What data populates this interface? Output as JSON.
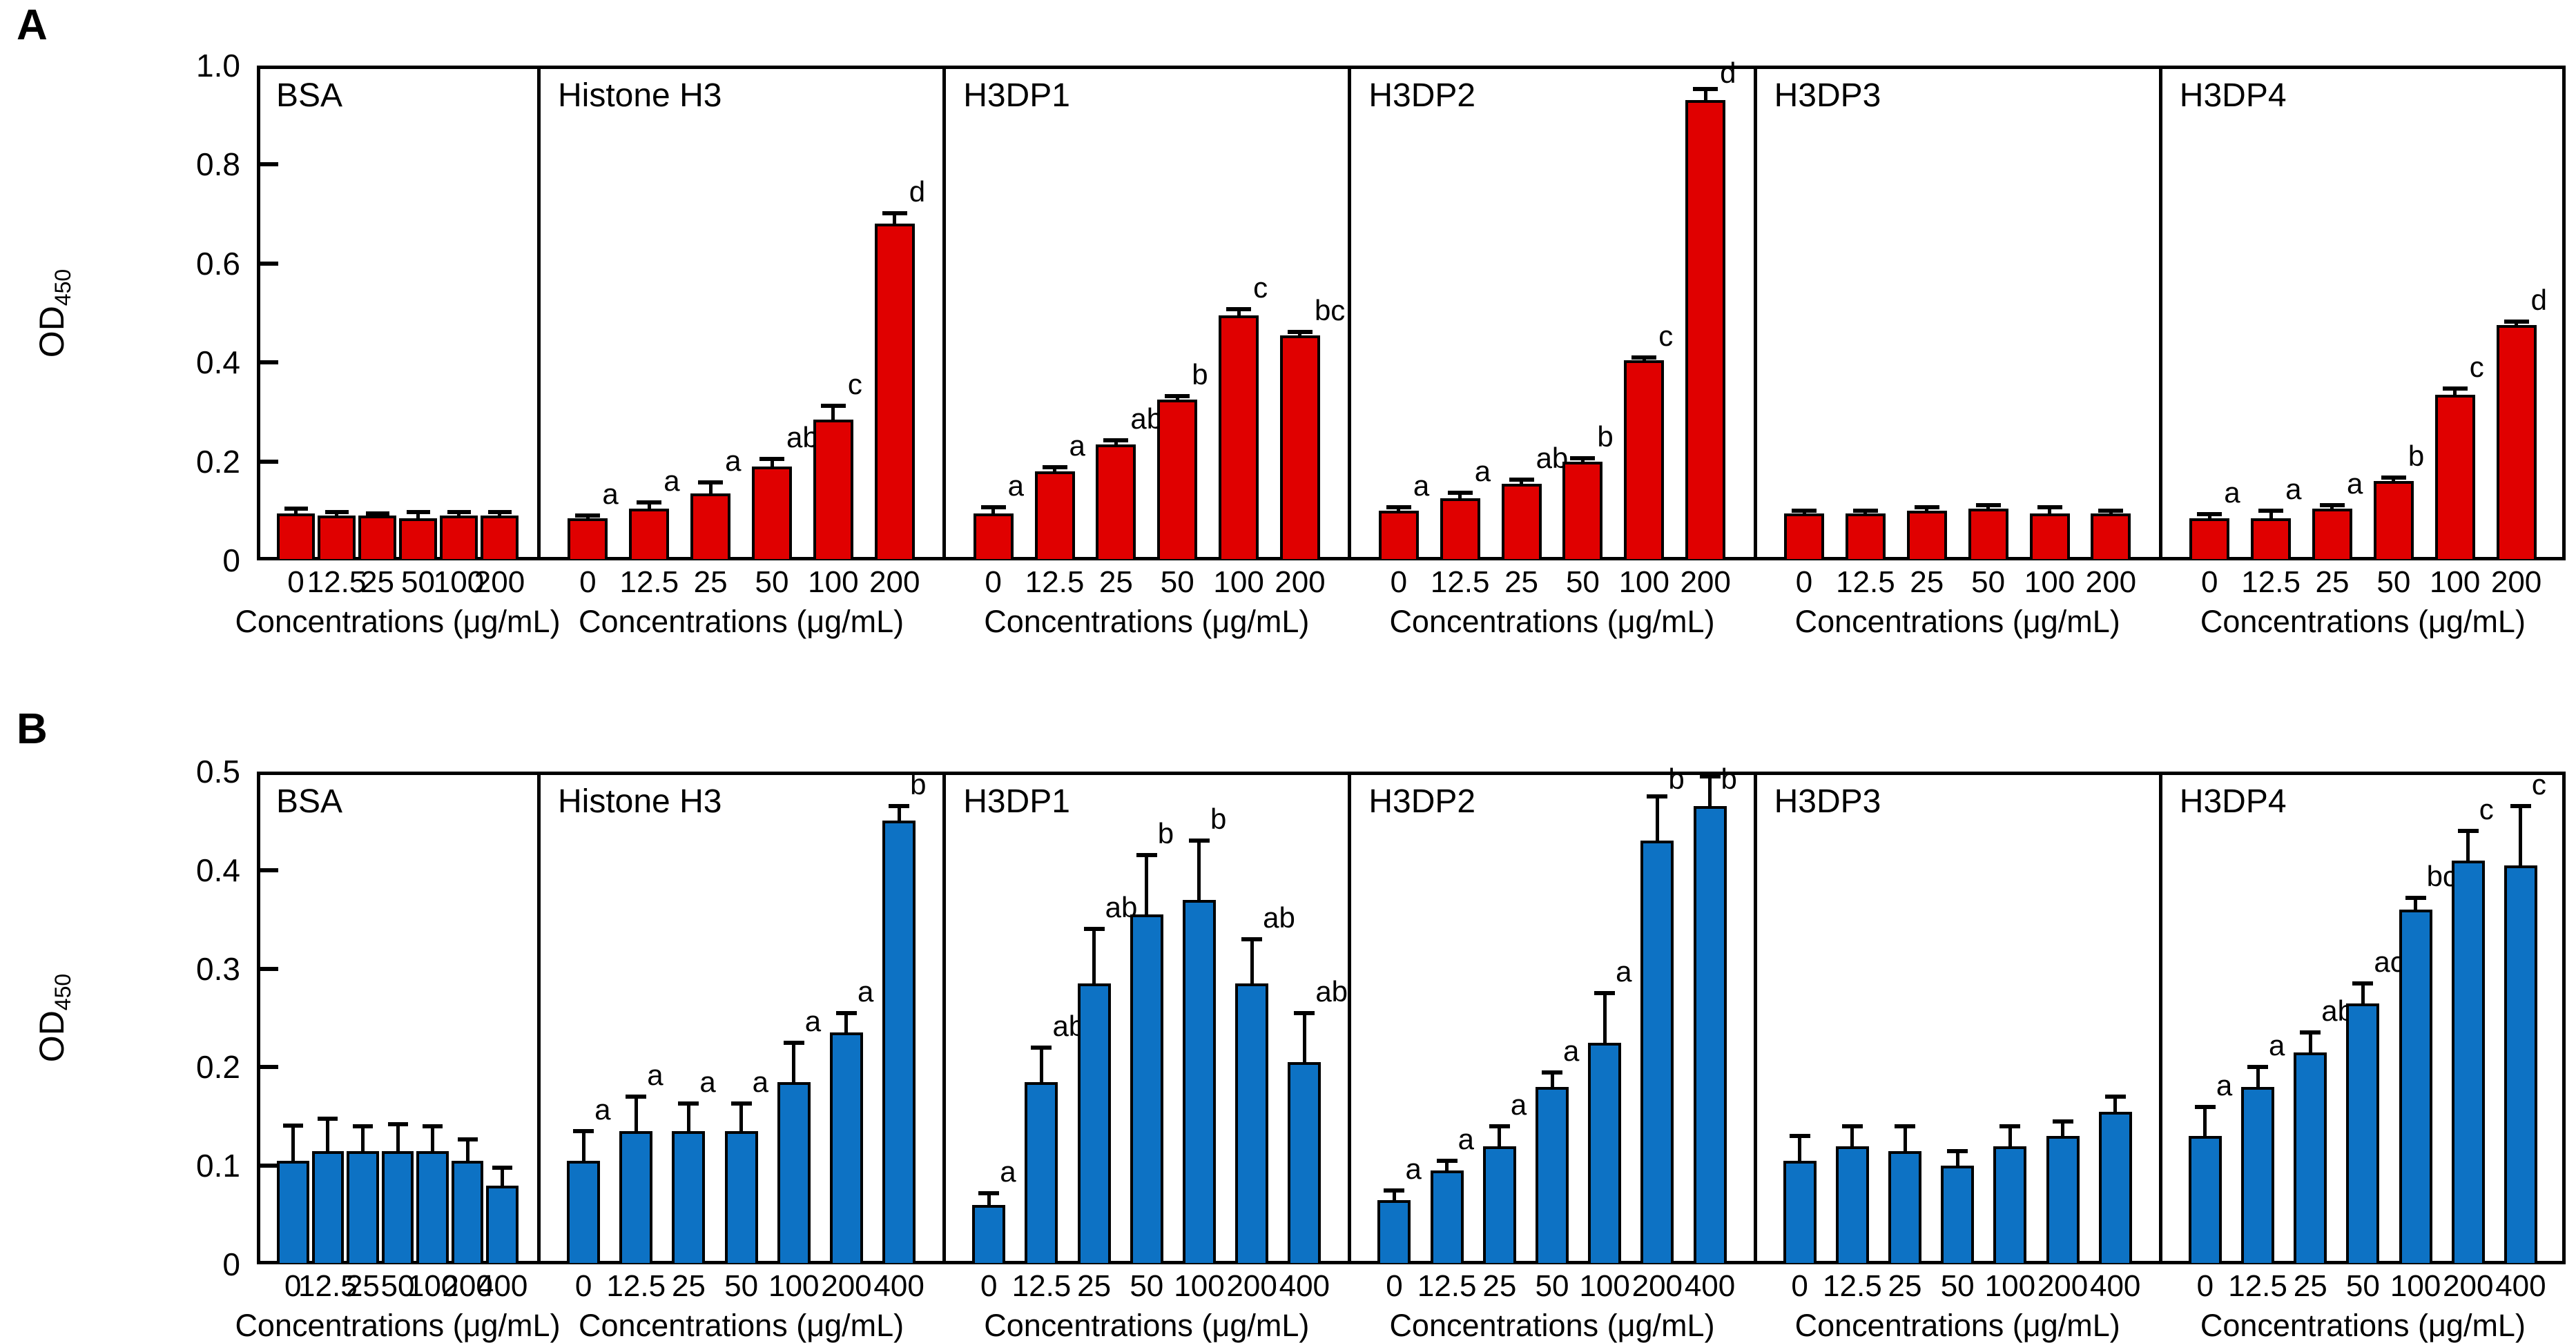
{
  "figure": {
    "background": "#ffffff",
    "text_color": "#000000"
  },
  "chart_data": [
    {
      "type": "bar",
      "panel_label": "A",
      "ylabel": "OD",
      "ylabel_sub": "450",
      "ylim": [
        0,
        1.0
      ],
      "grid": false,
      "yticks": [
        {
          "label": "1.0",
          "value": 1.0
        },
        {
          "label": "0.8",
          "value": 0.8
        },
        {
          "label": "0.6",
          "value": 0.6
        },
        {
          "label": "0.4",
          "value": 0.4
        },
        {
          "label": "0.2",
          "value": 0.2
        },
        {
          "label": "0",
          "value": 0
        }
      ],
      "categories": [
        "0",
        "12.5",
        "25",
        "50",
        "100",
        "200"
      ],
      "xlabel": "Concentrations (μg/mL)",
      "bar_color": "#e00000",
      "subpanels": [
        {
          "title": "BSA",
          "values": [
            0.095,
            0.09,
            0.09,
            0.085,
            0.09,
            0.09
          ],
          "errors": [
            0.01,
            0.008,
            0.005,
            0.012,
            0.008,
            0.008
          ],
          "letters": [
            "",
            "",
            "",
            "",
            "",
            ""
          ]
        },
        {
          "title": "Histone H3",
          "values": [
            0.085,
            0.105,
            0.135,
            0.19,
            0.285,
            0.68
          ],
          "errors": [
            0.005,
            0.012,
            0.022,
            0.015,
            0.028,
            0.022
          ],
          "letters": [
            "a",
            "a",
            "a",
            "ab",
            "c",
            "d"
          ]
        },
        {
          "title": "H3DP1",
          "values": [
            0.095,
            0.18,
            0.235,
            0.325,
            0.495,
            0.455
          ],
          "errors": [
            0.012,
            0.008,
            0.008,
            0.007,
            0.012,
            0.006
          ],
          "letters": [
            "a",
            "a",
            "ab",
            "b",
            "c",
            "bc"
          ]
        },
        {
          "title": "H3DP2",
          "values": [
            0.1,
            0.125,
            0.155,
            0.2,
            0.405,
            0.93
          ],
          "errors": [
            0.008,
            0.012,
            0.008,
            0.006,
            0.005,
            0.022
          ],
          "letters": [
            "a",
            "a",
            "ab",
            "b",
            "c",
            "d"
          ]
        },
        {
          "title": "H3DP3",
          "values": [
            0.095,
            0.095,
            0.1,
            0.105,
            0.095,
            0.095
          ],
          "errors": [
            0.006,
            0.006,
            0.007,
            0.006,
            0.013,
            0.006
          ],
          "letters": [
            "",
            "",
            "",
            "",
            "",
            ""
          ]
        },
        {
          "title": "H3DP4",
          "values": [
            0.085,
            0.085,
            0.105,
            0.16,
            0.335,
            0.475
          ],
          "errors": [
            0.008,
            0.016,
            0.006,
            0.008,
            0.012,
            0.008
          ],
          "letters": [
            "a",
            "a",
            "a",
            "b",
            "c",
            "d"
          ]
        }
      ]
    },
    {
      "type": "bar",
      "panel_label": "B",
      "ylabel": "OD",
      "ylabel_sub": "450",
      "ylim": [
        0,
        0.5
      ],
      "grid": false,
      "yticks": [
        {
          "label": "0.5",
          "value": 0.5
        },
        {
          "label": "0.4",
          "value": 0.4
        },
        {
          "label": "0.3",
          "value": 0.3
        },
        {
          "label": "0.2",
          "value": 0.2
        },
        {
          "label": "0.1",
          "value": 0.1
        },
        {
          "label": "0",
          "value": 0
        }
      ],
      "categories": [
        "0",
        "12.5",
        "25",
        "50",
        "100",
        "200",
        "400"
      ],
      "xlabel": "Concentrations (μg/mL)",
      "bar_color": "#0d72c4",
      "subpanels": [
        {
          "title": "BSA",
          "values": [
            0.105,
            0.115,
            0.115,
            0.115,
            0.115,
            0.105,
            0.08
          ],
          "errors": [
            0.036,
            0.033,
            0.025,
            0.027,
            0.025,
            0.022,
            0.018
          ],
          "letters": [
            "",
            "",
            "",
            "",
            "",
            "",
            ""
          ]
        },
        {
          "title": "Histone H3",
          "values": [
            0.105,
            0.135,
            0.135,
            0.135,
            0.185,
            0.235,
            0.45
          ],
          "errors": [
            0.03,
            0.035,
            0.028,
            0.028,
            0.04,
            0.02,
            0.015
          ],
          "letters": [
            "a",
            "a",
            "a",
            "a",
            "a",
            "a",
            "b"
          ]
        },
        {
          "title": "H3DP1",
          "values": [
            0.06,
            0.185,
            0.285,
            0.355,
            0.37,
            0.285,
            0.205
          ],
          "errors": [
            0.012,
            0.035,
            0.055,
            0.06,
            0.06,
            0.045,
            0.05
          ],
          "letters": [
            "a",
            "ab",
            "ab",
            "b",
            "b",
            "ab",
            "ab"
          ]
        },
        {
          "title": "H3DP2",
          "values": [
            0.065,
            0.095,
            0.12,
            0.18,
            0.225,
            0.43,
            0.465
          ],
          "errors": [
            0.01,
            0.01,
            0.02,
            0.015,
            0.05,
            0.045,
            0.03
          ],
          "letters": [
            "a",
            "a",
            "a",
            "a",
            "a",
            "b",
            "b"
          ]
        },
        {
          "title": "H3DP3",
          "values": [
            0.105,
            0.12,
            0.115,
            0.1,
            0.12,
            0.13,
            0.155
          ],
          "errors": [
            0.025,
            0.02,
            0.025,
            0.015,
            0.02,
            0.015,
            0.015
          ],
          "letters": [
            "",
            "",
            "",
            "",
            "",
            "",
            ""
          ]
        },
        {
          "title": "H3DP4",
          "values": [
            0.13,
            0.18,
            0.215,
            0.265,
            0.36,
            0.41,
            0.405
          ],
          "errors": [
            0.03,
            0.02,
            0.02,
            0.02,
            0.012,
            0.03,
            0.06
          ],
          "letters": [
            "a",
            "a",
            "ab",
            "ac",
            "bc",
            "c",
            "c"
          ]
        }
      ]
    }
  ]
}
